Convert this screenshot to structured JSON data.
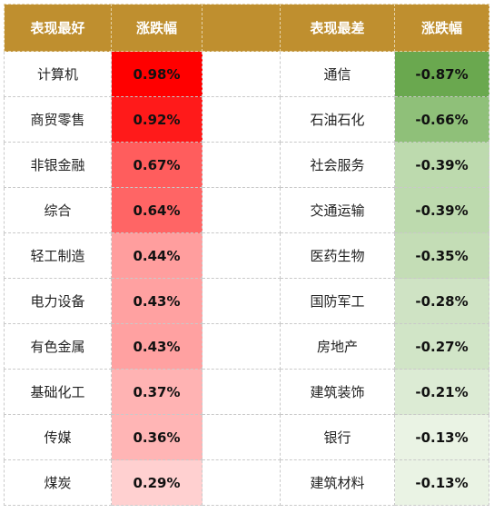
{
  "header": {
    "best_label": "表现最好",
    "change_label_left": "涨跌幅",
    "worst_label": "表现最差",
    "change_label_right": "涨跌幅"
  },
  "colors": {
    "header_bg": "#bf8f2f",
    "header_text": "#ffffff"
  },
  "best": [
    {
      "name": "计算机",
      "change": "0.98%",
      "bg": "#ff0000"
    },
    {
      "name": "商贸零售",
      "change": "0.92%",
      "bg": "#ff1a1a"
    },
    {
      "name": "非银金融",
      "change": "0.67%",
      "bg": "#ff5d5d"
    },
    {
      "name": "综合",
      "change": "0.64%",
      "bg": "#ff6565"
    },
    {
      "name": "轻工制造",
      "change": "0.44%",
      "bg": "#ff9e9e"
    },
    {
      "name": "电力设备",
      "change": "0.43%",
      "bg": "#ffa1a1"
    },
    {
      "name": "有色金属",
      "change": "0.43%",
      "bg": "#ffa1a1"
    },
    {
      "name": "基础化工",
      "change": "0.37%",
      "bg": "#ffb3b3"
    },
    {
      "name": "传媒",
      "change": "0.36%",
      "bg": "#ffb5b5"
    },
    {
      "name": "煤炭",
      "change": "0.29%",
      "bg": "#ffd0d0"
    }
  ],
  "worst": [
    {
      "name": "通信",
      "change": "-0.87%",
      "bg": "#6aa84f"
    },
    {
      "name": "石油石化",
      "change": "-0.66%",
      "bg": "#8fc079"
    },
    {
      "name": "社会服务",
      "change": "-0.39%",
      "bg": "#bddaae"
    },
    {
      "name": "交通运输",
      "change": "-0.39%",
      "bg": "#bddaae"
    },
    {
      "name": "医药生物",
      "change": "-0.35%",
      "bg": "#c4ddb6"
    },
    {
      "name": "国防军工",
      "change": "-0.28%",
      "bg": "#cfe3c4"
    },
    {
      "name": "房地产",
      "change": "-0.27%",
      "bg": "#d1e5c7"
    },
    {
      "name": "建筑装饰",
      "change": "-0.21%",
      "bg": "#dcebd4"
    },
    {
      "name": "银行",
      "change": "-0.13%",
      "bg": "#eaf3e4"
    },
    {
      "name": "建筑材料",
      "change": "-0.13%",
      "bg": "#eaf3e4"
    }
  ]
}
